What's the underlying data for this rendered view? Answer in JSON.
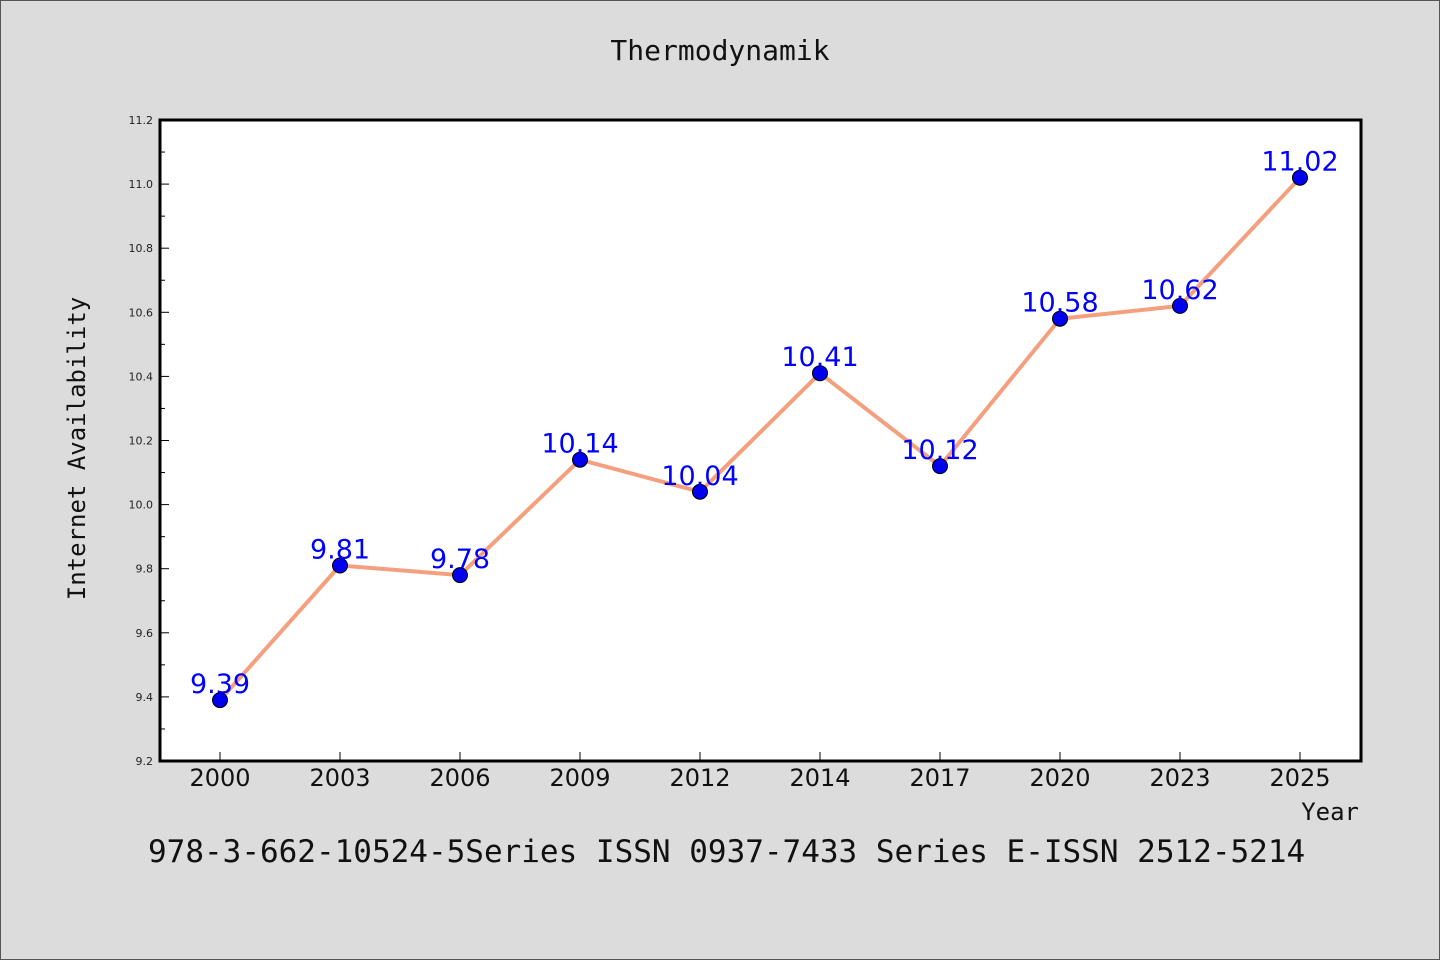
{
  "chart_data": {
    "type": "line",
    "title": "Thermodynamik",
    "xlabel": "Year",
    "ylabel": "Internet Availability",
    "categories": [
      "2000",
      "2003",
      "2006",
      "2009",
      "2012",
      "2014",
      "2017",
      "2020",
      "2023",
      "2025"
    ],
    "series": [
      {
        "values": [
          9.39,
          9.81,
          9.78,
          10.14,
          10.04,
          10.41,
          10.12,
          10.58,
          10.62,
          11.02
        ]
      }
    ],
    "data_labels": [
      "9.39",
      "9.81",
      "9.78",
      "10.14",
      "10.04",
      "10.41",
      "10.12",
      "10.58",
      "10.62",
      "11.02"
    ],
    "ylim": [
      9.2,
      11.2
    ],
    "yticks": [
      "9.2",
      "9.4",
      "9.6",
      "9.8",
      "10.0",
      "10.2",
      "10.4",
      "10.6",
      "10.8",
      "11.0",
      "11.2"
    ],
    "grid": false,
    "legend": "none",
    "line_color": "#f4a07e",
    "marker_color": "#0000ee",
    "label_color": "#0000ff"
  },
  "footer": {
    "text": "978-3-662-10524-5Series ISSN 0937-7433 Series E-ISSN 2512-5214"
  }
}
